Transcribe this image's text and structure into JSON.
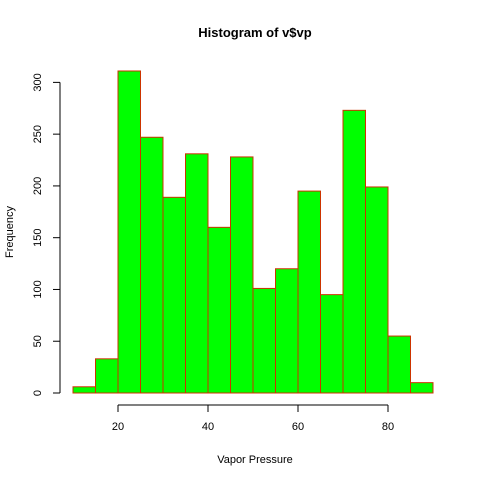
{
  "chart_data": {
    "type": "bar",
    "title": "Histogram of v$vp",
    "xlabel": "Vapor Pressure",
    "ylabel": "Frequency",
    "bin_edges": [
      10,
      15,
      20,
      25,
      30,
      35,
      40,
      45,
      50,
      55,
      60,
      65,
      70,
      75,
      80,
      85,
      90
    ],
    "values": [
      6,
      33,
      311,
      247,
      189,
      231,
      160,
      228,
      101,
      120,
      195,
      95,
      273,
      199,
      55,
      10
    ],
    "xlim": [
      10,
      90
    ],
    "ylim": [
      0,
      311
    ],
    "x_ticks": [
      20,
      40,
      60,
      80
    ],
    "y_ticks": [
      0,
      50,
      100,
      150,
      200,
      250,
      300
    ],
    "bar_fill": "#00ff00",
    "bar_border": "#cc3300",
    "grid": false,
    "legend": "none"
  }
}
